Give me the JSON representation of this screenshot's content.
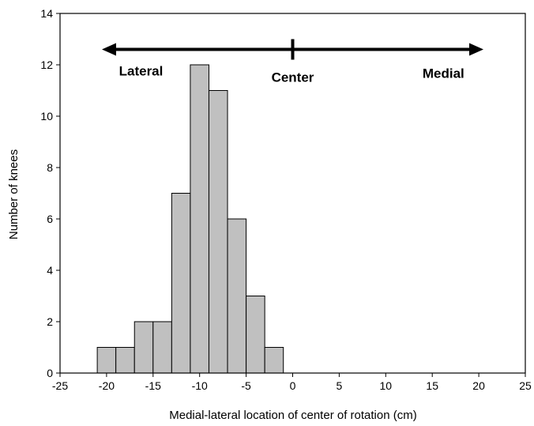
{
  "chart_data": {
    "type": "bar",
    "title": "",
    "xlabel": "Medial-lateral location of center of rotation (cm)",
    "ylabel": "Number of knees",
    "xlim": [
      -25,
      25
    ],
    "ylim": [
      0,
      14
    ],
    "xticks": [
      -25,
      -20,
      -15,
      -10,
      -5,
      0,
      5,
      10,
      15,
      20,
      25
    ],
    "yticks": [
      0,
      2,
      4,
      6,
      8,
      10,
      12,
      14
    ],
    "bin_width": 2,
    "bins": [
      {
        "start": -21,
        "end": -19,
        "count": 1
      },
      {
        "start": -19,
        "end": -17,
        "count": 1
      },
      {
        "start": -17,
        "end": -15,
        "count": 2
      },
      {
        "start": -15,
        "end": -13,
        "count": 2
      },
      {
        "start": -13,
        "end": -11,
        "count": 7
      },
      {
        "start": -11,
        "end": -9,
        "count": 12
      },
      {
        "start": -9,
        "end": -7,
        "count": 11
      },
      {
        "start": -7,
        "end": -5,
        "count": 6
      },
      {
        "start": -5,
        "end": -3,
        "count": 3
      },
      {
        "start": -3,
        "end": -1,
        "count": 1
      }
    ],
    "bar_color": "#c0c0c0",
    "grid": false,
    "annotation": {
      "left_label": "Lateral",
      "center_label": "Center",
      "right_label": "Medial",
      "arrow_y": 12.6,
      "arrow_from_x": -20.5,
      "arrow_to_x": 20.5,
      "center_x": 0
    }
  }
}
